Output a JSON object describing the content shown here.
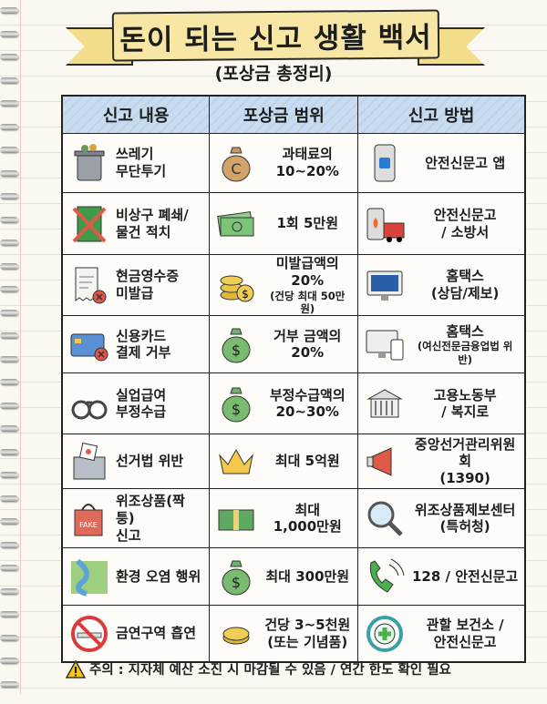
{
  "title": "돈이 되는 신고 생활 백서",
  "subtitle": "(포상금 총정리)",
  "headers": [
    "신고 내용",
    "포상금 범위",
    "신고 방법"
  ],
  "rows": [
    {
      "item": [
        "쓰레기",
        "무단투기"
      ],
      "reward": [
        "과태료의",
        "10~20%"
      ],
      "method": [
        "안전신문고 앱"
      ],
      "icons": [
        "trash-can-icon",
        "coin-bag-icon",
        "phone-app-icon"
      ]
    },
    {
      "item": [
        "비상구 폐쇄/",
        "물건 적치"
      ],
      "reward": [
        "1회 5만원"
      ],
      "method": [
        "안전신문고",
        "/ 소방서"
      ],
      "icons": [
        "blocked-exit-icon",
        "cash-bills-icon",
        "fire-truck-icon"
      ]
    },
    {
      "item": [
        "현금영수증",
        "미발급"
      ],
      "reward": [
        "미발급액의 20%",
        "(건당 최대 50만원)"
      ],
      "method": [
        "홈택스",
        "(상담/제보)"
      ],
      "icons": [
        "receipt-icon",
        "coin-stack-icon",
        "monitor-icon"
      ]
    },
    {
      "item": [
        "신용카드",
        "결제 거부"
      ],
      "reward": [
        "거부 금액의",
        "20%"
      ],
      "method": [
        "홈택스",
        "(여신전문금융업법 위반)"
      ],
      "icons": [
        "credit-card-icon",
        "money-bag-icon",
        "devices-icon"
      ]
    },
    {
      "item": [
        "실업급여",
        "부정수급"
      ],
      "reward": [
        "부정수급액의",
        "20~30%"
      ],
      "method": [
        "고용노동부",
        "/ 복지로"
      ],
      "icons": [
        "handcuffs-icon",
        "money-bag-icon",
        "government-building-icon"
      ]
    },
    {
      "item": [
        "선거법 위반"
      ],
      "reward": [
        "최대 5억원"
      ],
      "method": [
        "중앙선거관리위원회",
        "(1390)"
      ],
      "icons": [
        "ballot-box-icon",
        "crown-icon",
        "megaphone-icon"
      ]
    },
    {
      "item": [
        "위조상품(짝퉁)",
        "신고"
      ],
      "reward": [
        "최대",
        "1,000만원"
      ],
      "method": [
        "위조상품제보센터",
        "(특허청)"
      ],
      "icons": [
        "fake-bag-icon",
        "cash-stack-icon",
        "magnifier-icon"
      ]
    },
    {
      "item": [
        "환경 오염 행위"
      ],
      "reward": [
        "최대 300만원"
      ],
      "method": [
        "128 / 안전신문고"
      ],
      "icons": [
        "river-icon",
        "money-bag-icon",
        "phone-call-icon"
      ]
    },
    {
      "item": [
        "금연구역 흡연"
      ],
      "reward": [
        "건당 3~5천원",
        "(또는 기념품)"
      ],
      "method": [
        "관할 보건소 /",
        "안전신문고"
      ],
      "icons": [
        "no-smoking-icon",
        "coin-icon",
        "health-cross-icon"
      ]
    }
  ],
  "footer": "주의 : 지자체 예산 소진 시 마감될 수 있음 / 연간 한도 확인 필요",
  "footer_icon": "warning-icon"
}
